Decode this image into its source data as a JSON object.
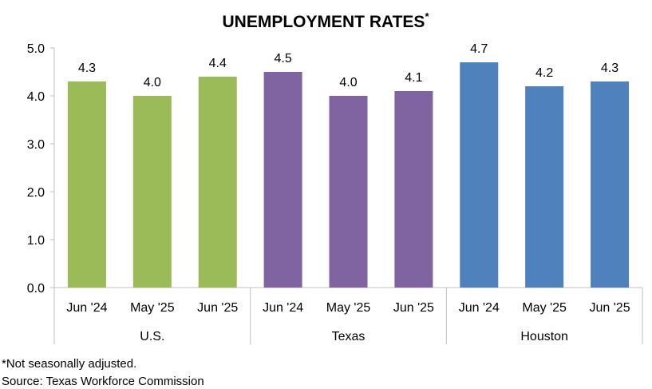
{
  "chart_data": {
    "type": "bar",
    "title": "UNEMPLOYMENT RATES",
    "title_superscript": "*",
    "groups": [
      {
        "name": "U.S.",
        "color": "#9BBB59",
        "categories": [
          "Jun '24",
          "May '25",
          "Jun '25"
        ],
        "values": [
          4.3,
          4.0,
          4.4
        ],
        "labels": [
          "4.3",
          "4.0",
          "4.4"
        ]
      },
      {
        "name": "Texas",
        "color": "#8064A2",
        "categories": [
          "Jun '24",
          "May '25",
          "Jun '25"
        ],
        "values": [
          4.5,
          4.0,
          4.1
        ],
        "labels": [
          "4.5",
          "4.0",
          "4.1"
        ]
      },
      {
        "name": "Houston",
        "color": "#4F81BD",
        "categories": [
          "Jun '24",
          "May '25",
          "Jun '25"
        ],
        "values": [
          4.7,
          4.2,
          4.3
        ],
        "labels": [
          "4.7",
          "4.2",
          "4.3"
        ]
      }
    ],
    "ylim": [
      0,
      5
    ],
    "yticks": [
      "0.0",
      "1.0",
      "2.0",
      "3.0",
      "4.0",
      "5.0"
    ],
    "grid": false,
    "xlabel": "",
    "ylabel": ""
  },
  "footnotes": {
    "note": "*Not seasonally adjusted.",
    "source": "Source: Texas Workforce Commission"
  }
}
